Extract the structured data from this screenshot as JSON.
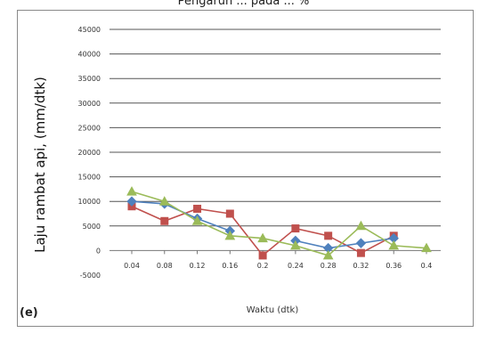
{
  "caption": "Pengaruh ... pada ... %",
  "panel_label": "(e)",
  "chart_data": {
    "type": "line",
    "title": "",
    "xlabel": "Waktu (dtk)",
    "ylabel": "Laju rambat api, (mm/dtk)",
    "categories": [
      "0.04",
      "0.08",
      "0.12",
      "0.16",
      "0.2",
      "0.24",
      "0.28",
      "0.32",
      "0.36",
      "0.4"
    ],
    "ylim": [
      -5000,
      45000
    ],
    "yticks": [
      "-5000",
      "0",
      "5000",
      "10000",
      "15000",
      "20000",
      "25000",
      "30000",
      "35000",
      "40000",
      "45000"
    ],
    "grid": true,
    "legend": "none",
    "series": [
      {
        "color": "#c0504d",
        "marker": "square",
        "values": [
          9000,
          6000,
          8500,
          7500,
          -1000,
          4500,
          3000,
          -500,
          3000,
          null
        ]
      },
      {
        "color": "#4f81bd",
        "marker": "diamond",
        "values": [
          10000,
          9500,
          6500,
          4000,
          null,
          2000,
          500,
          1500,
          2500,
          null
        ]
      },
      {
        "color": "#9bbb59",
        "marker": "triangle",
        "values": [
          12000,
          10000,
          6000,
          3000,
          2500,
          1000,
          -1000,
          5000,
          1000,
          500
        ]
      }
    ]
  }
}
